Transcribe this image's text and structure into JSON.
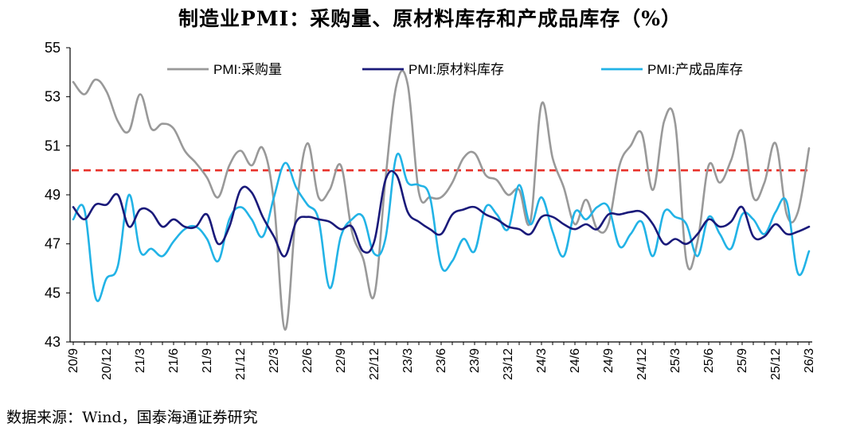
{
  "title": "制造业PMI：采购量、原材料库存和产成品库存（%）",
  "source": "数据来源：Wind，国泰海通证券研究",
  "chart_data": {
    "type": "line",
    "ylim": [
      43,
      55
    ],
    "yticks": [
      43,
      45,
      47,
      49,
      51,
      53,
      55
    ],
    "reference_line": {
      "value": 50,
      "color": "#e8312a",
      "style": "dashed"
    },
    "x": [
      "20/9",
      "20/10",
      "20/11",
      "20/12",
      "21/1",
      "21/2",
      "21/3",
      "21/4",
      "21/5",
      "21/6",
      "21/7",
      "21/8",
      "21/9",
      "21/10",
      "21/11",
      "21/12",
      "22/1",
      "22/2",
      "22/3",
      "22/4",
      "22/5",
      "22/6",
      "22/7",
      "22/8",
      "22/9",
      "22/10",
      "22/11",
      "22/12",
      "23/1",
      "23/2",
      "23/3",
      "23/4",
      "23/5",
      "23/6",
      "23/7",
      "23/8",
      "23/9",
      "23/10",
      "23/11",
      "23/12",
      "24/1",
      "24/2",
      "24/3",
      "24/4",
      "24/5",
      "24/6",
      "24/7",
      "24/8",
      "24/9",
      "24/10",
      "24/11",
      "24/12",
      "25/1",
      "25/2",
      "25/3",
      "25/4",
      "25/5",
      "25/6",
      "25/7",
      "25/8",
      "25/9",
      "25/10",
      "25/11",
      "25/12",
      "26/1",
      "26/2",
      "26/3"
    ],
    "xtick_labels": [
      "20/9",
      "20/12",
      "21/3",
      "21/6",
      "21/9",
      "21/12",
      "22/3",
      "22/6",
      "22/9",
      "22/12",
      "23/3",
      "23/6",
      "23/9",
      "23/12",
      "24/3",
      "24/6",
      "24/9",
      "24/12",
      "25/3",
      "25/6",
      "25/9",
      "25/12",
      "26/3"
    ],
    "series": [
      {
        "name": "PMI:采购量",
        "color": "#999999",
        "values": [
          53.6,
          53.1,
          53.7,
          53.2,
          52.0,
          51.6,
          53.1,
          51.7,
          51.9,
          51.7,
          50.8,
          50.3,
          49.7,
          48.9,
          50.2,
          50.8,
          50.2,
          50.9,
          48.7,
          43.5,
          48.4,
          51.1,
          48.9,
          49.2,
          50.2,
          47.5,
          46.4,
          44.9,
          49.6,
          53.5,
          53.5,
          49.1,
          48.9,
          48.9,
          49.5,
          50.5,
          50.7,
          49.8,
          49.6,
          49.0,
          49.2,
          47.9,
          52.7,
          50.5,
          49.3,
          47.8,
          48.8,
          47.6,
          47.8,
          50.2,
          51.0,
          51.5,
          49.2,
          52.0,
          51.9,
          46.3,
          47.1,
          50.2,
          49.5,
          50.4,
          51.6,
          48.9,
          49.5,
          51.1,
          48.2,
          48.3,
          50.9
        ]
      },
      {
        "name": "PMI:原材料库存",
        "color": "#1a1a7a",
        "values": [
          48.5,
          48.0,
          48.6,
          48.6,
          49.0,
          47.7,
          48.4,
          48.3,
          47.7,
          48.0,
          47.7,
          47.7,
          48.2,
          47.0,
          47.7,
          49.2,
          49.1,
          48.1,
          47.3,
          46.5,
          47.9,
          48.1,
          48.0,
          47.9,
          47.6,
          47.7,
          46.7,
          47.1,
          49.6,
          49.8,
          48.3,
          47.9,
          47.6,
          47.4,
          48.2,
          48.4,
          48.5,
          48.2,
          48.0,
          47.7,
          47.6,
          47.4,
          48.1,
          48.1,
          47.8,
          47.6,
          47.8,
          47.6,
          48.2,
          48.2,
          48.3,
          48.3,
          47.8,
          47.0,
          47.2,
          47.0,
          47.4,
          48.0,
          47.7,
          47.9,
          48.5,
          47.3,
          47.3,
          47.8,
          47.4,
          47.5,
          47.7
        ]
      },
      {
        "name": "PMI:产成品库存",
        "color": "#22b3e6",
        "values": [
          48.0,
          48.4,
          44.8,
          45.6,
          46.1,
          49.0,
          46.7,
          46.8,
          46.5,
          47.1,
          47.6,
          47.7,
          47.2,
          46.3,
          48.0,
          48.5,
          48.0,
          47.3,
          48.9,
          50.3,
          49.3,
          48.6,
          48.0,
          45.2,
          47.3,
          48.0,
          48.1,
          46.6,
          47.2,
          50.6,
          49.5,
          49.4,
          48.9,
          46.1,
          46.3,
          47.2,
          46.7,
          48.5,
          48.2,
          47.6,
          49.4,
          47.8,
          48.9,
          47.5,
          46.5,
          48.3,
          48.0,
          48.5,
          48.5,
          46.9,
          47.4,
          47.9,
          46.5,
          48.3,
          48.1,
          47.8,
          46.5,
          48.1,
          47.4,
          46.8,
          48.2,
          48.0,
          47.4,
          48.3,
          48.7,
          45.8,
          46.7
        ]
      }
    ]
  }
}
